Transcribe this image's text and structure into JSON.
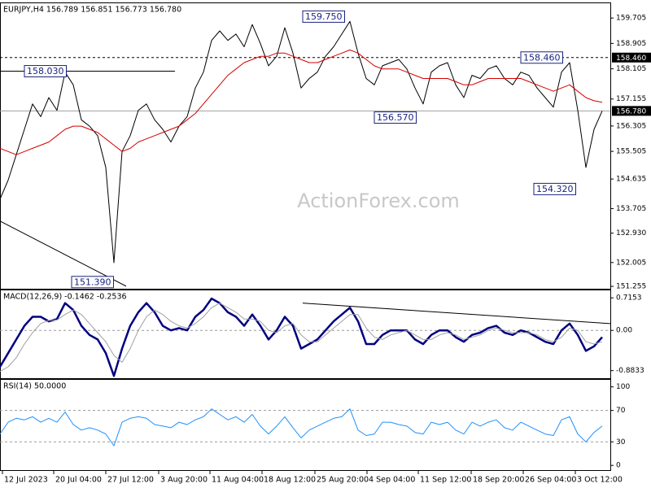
{
  "chart_data": [
    {
      "type": "line",
      "title": "EURJPY,H4  156.789 156.851 156.773 156.780",
      "watermark": "ActionForex.com",
      "x": [
        0,
        1,
        2,
        3,
        4,
        5,
        6,
        7,
        8,
        9,
        10,
        11,
        12,
        13,
        14,
        15,
        16,
        17,
        18,
        19,
        20,
        21,
        22,
        23,
        24,
        25,
        26,
        27,
        28,
        29,
        30,
        31,
        32,
        33,
        34,
        35,
        36,
        37,
        38,
        39,
        40,
        41,
        42,
        43,
        44,
        45,
        46,
        47,
        48,
        49,
        50,
        51,
        52,
        53,
        54,
        55,
        56,
        57,
        58,
        59,
        60,
        61,
        62,
        63,
        64,
        65,
        66,
        67,
        68,
        69,
        70,
        71,
        72,
        73,
        74
      ],
      "xlim": [
        0,
        75
      ],
      "ylim": [
        151.18,
        160.17
      ],
      "yticks": [
        159.705,
        158.905,
        158.105,
        157.155,
        156.305,
        155.505,
        154.635,
        153.705,
        {
          "value": 152.93,
          "label": "152.930"
        },
        152.005,
        151.255
      ],
      "series": [
        {
          "color": "#000000",
          "width": 1,
          "values": [
            154.0,
            154.6,
            155.4,
            156.2,
            157.0,
            156.6,
            157.2,
            156.8,
            158.0,
            157.6,
            156.5,
            156.3,
            156.0,
            155.0,
            152.0,
            155.5,
            156.0,
            156.8,
            157.0,
            156.5,
            156.2,
            155.8,
            156.3,
            156.6,
            157.5,
            158.0,
            159.0,
            159.3,
            159.0,
            159.2,
            158.8,
            159.5,
            158.9,
            158.2,
            158.5,
            159.4,
            158.6,
            157.5,
            157.8,
            158.0,
            158.5,
            158.8,
            159.2,
            159.6,
            158.6,
            157.8,
            157.6,
            158.2,
            158.3,
            158.4,
            158.1,
            157.5,
            157.0,
            158.0,
            158.2,
            158.3,
            157.6,
            157.2,
            157.9,
            157.8,
            158.1,
            158.2,
            157.8,
            157.6,
            158.0,
            157.9,
            157.5,
            157.2,
            156.9,
            158.0,
            158.3,
            156.8,
            155.0,
            156.2,
            156.78
          ]
        },
        {
          "color": "#d40000",
          "width": 1,
          "values": [
            155.6,
            155.5,
            155.4,
            155.5,
            155.6,
            155.7,
            155.8,
            156.0,
            156.2,
            156.3,
            156.3,
            156.2,
            156.1,
            155.9,
            155.7,
            155.5,
            155.6,
            155.8,
            155.9,
            156.0,
            156.1,
            156.2,
            156.3,
            156.5,
            156.7,
            157.0,
            157.3,
            157.6,
            157.9,
            158.1,
            158.3,
            158.4,
            158.5,
            158.5,
            158.6,
            158.6,
            158.5,
            158.4,
            158.3,
            158.3,
            158.4,
            158.5,
            158.6,
            158.7,
            158.6,
            158.4,
            158.2,
            158.1,
            158.1,
            158.1,
            158.0,
            157.9,
            157.8,
            157.8,
            157.8,
            157.8,
            157.7,
            157.6,
            157.6,
            157.7,
            157.8,
            157.8,
            157.8,
            157.8,
            157.8,
            157.7,
            157.6,
            157.5,
            157.4,
            157.5,
            157.6,
            157.4,
            157.2,
            157.1,
            157.05
          ]
        }
      ],
      "trendlines": [
        {
          "x": [
            0,
            21.5
          ],
          "y": [
            158.03,
            158.03
          ]
        },
        {
          "x": [
            0,
            15.5
          ],
          "y": [
            153.31,
            151.26
          ]
        }
      ],
      "annotations": [
        {
          "x": 37.2,
          "value": 159.75,
          "label": "159.750"
        },
        {
          "x": 3,
          "value": 158.03,
          "label": "158.030"
        },
        {
          "x": 64,
          "value": 158.46,
          "label": "158.460"
        },
        {
          "x": 46,
          "value": 156.57,
          "label": "156.570"
        },
        {
          "x": 65.6,
          "value": 154.32,
          "label": "154.320"
        },
        {
          "x": 8.8,
          "value": 151.39,
          "label": "151.390"
        }
      ],
      "price_markers": [
        {
          "value": 158.46,
          "label": "158.460",
          "style": "dashed",
          "color": "#000000"
        },
        {
          "value": 156.78,
          "label": "156.780",
          "style": "solid",
          "color": "#a0a0a0"
        }
      ]
    },
    {
      "type": "line",
      "title": "MACD(12,26,9) -0.1462 -0.2536",
      "x": [
        0,
        1,
        2,
        3,
        4,
        5,
        6,
        7,
        8,
        9,
        10,
        11,
        12,
        13,
        14,
        15,
        16,
        17,
        18,
        19,
        20,
        21,
        22,
        23,
        24,
        25,
        26,
        27,
        28,
        29,
        30,
        31,
        32,
        33,
        34,
        35,
        36,
        37,
        38,
        39,
        40,
        41,
        42,
        43,
        44,
        45,
        46,
        47,
        48,
        49,
        50,
        51,
        52,
        53,
        54,
        55,
        56,
        57,
        58,
        59,
        60,
        61,
        62,
        63,
        64,
        65,
        66,
        67,
        68,
        69,
        70,
        71,
        72,
        73,
        74
      ],
      "xlim": [
        0,
        75
      ],
      "ylim": [
        -1.05,
        0.88
      ],
      "yticks": [
        0.7153,
        {
          "value": 0,
          "label": "0.00"
        },
        -0.8833
      ],
      "levels": [
        0
      ],
      "series": [
        {
          "color": "#000080",
          "width": 2.5,
          "values": [
            -0.8,
            -0.5,
            -0.2,
            0.1,
            0.3,
            0.3,
            0.2,
            0.25,
            0.6,
            0.45,
            0.1,
            -0.1,
            -0.2,
            -0.5,
            -1.0,
            -0.4,
            0.1,
            0.4,
            0.6,
            0.4,
            0.1,
            0.0,
            0.05,
            0.0,
            0.3,
            0.45,
            0.7,
            0.6,
            0.4,
            0.3,
            0.1,
            0.35,
            0.1,
            -0.2,
            0.0,
            0.3,
            0.1,
            -0.4,
            -0.3,
            -0.2,
            0.0,
            0.2,
            0.35,
            0.5,
            0.2,
            -0.3,
            -0.3,
            -0.1,
            0.0,
            0.0,
            0.0,
            -0.2,
            -0.3,
            -0.1,
            0.0,
            0.0,
            -0.15,
            -0.25,
            -0.1,
            -0.05,
            0.05,
            0.1,
            -0.05,
            -0.1,
            0.0,
            -0.05,
            -0.15,
            -0.25,
            -0.3,
            0.0,
            0.15,
            -0.1,
            -0.45,
            -0.35,
            -0.15
          ]
        },
        {
          "color": "#a0a0a0",
          "width": 1,
          "values": [
            -0.9,
            -0.8,
            -0.6,
            -0.3,
            -0.05,
            0.15,
            0.22,
            0.23,
            0.35,
            0.45,
            0.35,
            0.15,
            -0.05,
            -0.25,
            -0.55,
            -0.7,
            -0.4,
            0.0,
            0.3,
            0.45,
            0.35,
            0.2,
            0.1,
            0.05,
            0.15,
            0.3,
            0.5,
            0.6,
            0.5,
            0.4,
            0.25,
            0.25,
            0.2,
            0.0,
            -0.05,
            0.1,
            0.15,
            -0.1,
            -0.25,
            -0.25,
            -0.1,
            0.05,
            0.2,
            0.35,
            0.35,
            0.05,
            -0.15,
            -0.2,
            -0.1,
            -0.05,
            0.0,
            -0.1,
            -0.2,
            -0.2,
            -0.1,
            -0.05,
            -0.1,
            -0.2,
            -0.15,
            -0.1,
            0.0,
            0.05,
            0.0,
            -0.05,
            -0.05,
            -0.05,
            -0.1,
            -0.2,
            -0.25,
            -0.15,
            0.05,
            0.0,
            -0.25,
            -0.3,
            -0.25
          ]
        }
      ],
      "trendlines": [
        {
          "x": [
            37.2,
            75
          ],
          "y": [
            0.6,
            0.15
          ]
        }
      ]
    },
    {
      "type": "line",
      "title": "RSI(14) 50.0000",
      "x": [
        0,
        1,
        2,
        3,
        4,
        5,
        6,
        7,
        8,
        9,
        10,
        11,
        12,
        13,
        14,
        15,
        16,
        17,
        18,
        19,
        20,
        21,
        22,
        23,
        24,
        25,
        26,
        27,
        28,
        29,
        30,
        31,
        32,
        33,
        34,
        35,
        36,
        37,
        38,
        39,
        40,
        41,
        42,
        43,
        44,
        45,
        46,
        47,
        48,
        49,
        50,
        51,
        52,
        53,
        54,
        55,
        56,
        57,
        58,
        59,
        60,
        61,
        62,
        63,
        64,
        65,
        66,
        67,
        68,
        69,
        70,
        71,
        72,
        73,
        74
      ],
      "xlim": [
        0,
        75
      ],
      "ylim": [
        -6,
        109
      ],
      "yticks": [
        100,
        70,
        30,
        0
      ],
      "levels": [
        70,
        30
      ],
      "series": [
        {
          "color": "#1e90ff",
          "width": 1,
          "values": [
            40,
            55,
            60,
            58,
            62,
            55,
            60,
            55,
            68,
            52,
            45,
            48,
            45,
            40,
            25,
            55,
            60,
            62,
            60,
            52,
            50,
            48,
            55,
            52,
            58,
            62,
            72,
            65,
            58,
            62,
            55,
            65,
            50,
            40,
            50,
            62,
            48,
            35,
            45,
            50,
            55,
            60,
            62,
            72,
            45,
            38,
            40,
            55,
            55,
            52,
            50,
            42,
            40,
            55,
            52,
            55,
            45,
            40,
            55,
            50,
            55,
            58,
            48,
            45,
            55,
            50,
            45,
            40,
            38,
            58,
            62,
            40,
            30,
            42,
            50
          ]
        }
      ],
      "xticks": [
        {
          "value": 0.3,
          "label": "12 Jul 2023"
        },
        {
          "value": 6.6,
          "label": "20 Jul 04:00"
        },
        {
          "value": 13,
          "label": "27 Jul 12:00"
        },
        {
          "value": 19.5,
          "label": "3 Aug 20:00"
        },
        {
          "value": 25.8,
          "label": "11 Aug 04:00"
        },
        {
          "value": 32.2,
          "label": "18 Aug 12:00"
        },
        {
          "value": 38.7,
          "label": "25 Aug 20:00"
        },
        {
          "value": 45.1,
          "label": "4 Sep 04:00"
        },
        {
          "value": 51.4,
          "label": "11 Sep 12:00"
        },
        {
          "value": 57.9,
          "label": "18 Sep 20:00"
        },
        {
          "value": 64.3,
          "label": "26 Sep 04:00"
        },
        {
          "value": 70.7,
          "label": "3 Oct 12:00"
        }
      ]
    }
  ]
}
